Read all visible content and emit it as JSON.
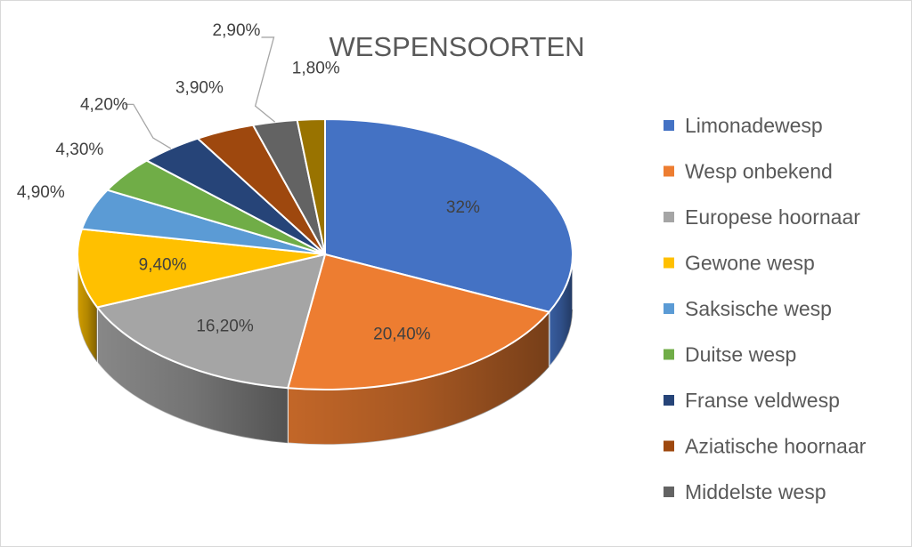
{
  "chart_data": {
    "type": "pie",
    "style": "3d",
    "title": "WESPENSOORTEN",
    "legend_position": "right",
    "slices": [
      {
        "name": "Limonadewesp",
        "value": 32,
        "label": "32%",
        "color": "#4472c4"
      },
      {
        "name": "Wesp onbekend",
        "value": 20.4,
        "label": "20,40%",
        "color": "#ed7d31"
      },
      {
        "name": "Europese hoornaar",
        "value": 16.2,
        "label": "16,20%",
        "color": "#a5a5a5"
      },
      {
        "name": "Gewone wesp",
        "value": 9.4,
        "label": "9,40%",
        "color": "#ffc000"
      },
      {
        "name": "Saksische wesp",
        "value": 4.9,
        "label": "4,90%",
        "color": "#5b9bd5"
      },
      {
        "name": "Duitse wesp",
        "value": 4.3,
        "label": "4,30%",
        "color": "#70ad47"
      },
      {
        "name": "Franse veldwesp",
        "value": 4.2,
        "label": "4,20%",
        "color": "#264478"
      },
      {
        "name": "Aziatische hoornaar",
        "value": 3.9,
        "label": "3,90%",
        "color": "#9e480e"
      },
      {
        "name": "Middelste wesp",
        "value": 2.9,
        "label": "2,90%",
        "color": "#636363"
      },
      {
        "value": 1.8,
        "label": "1,80%",
        "color": "#997300"
      }
    ]
  }
}
